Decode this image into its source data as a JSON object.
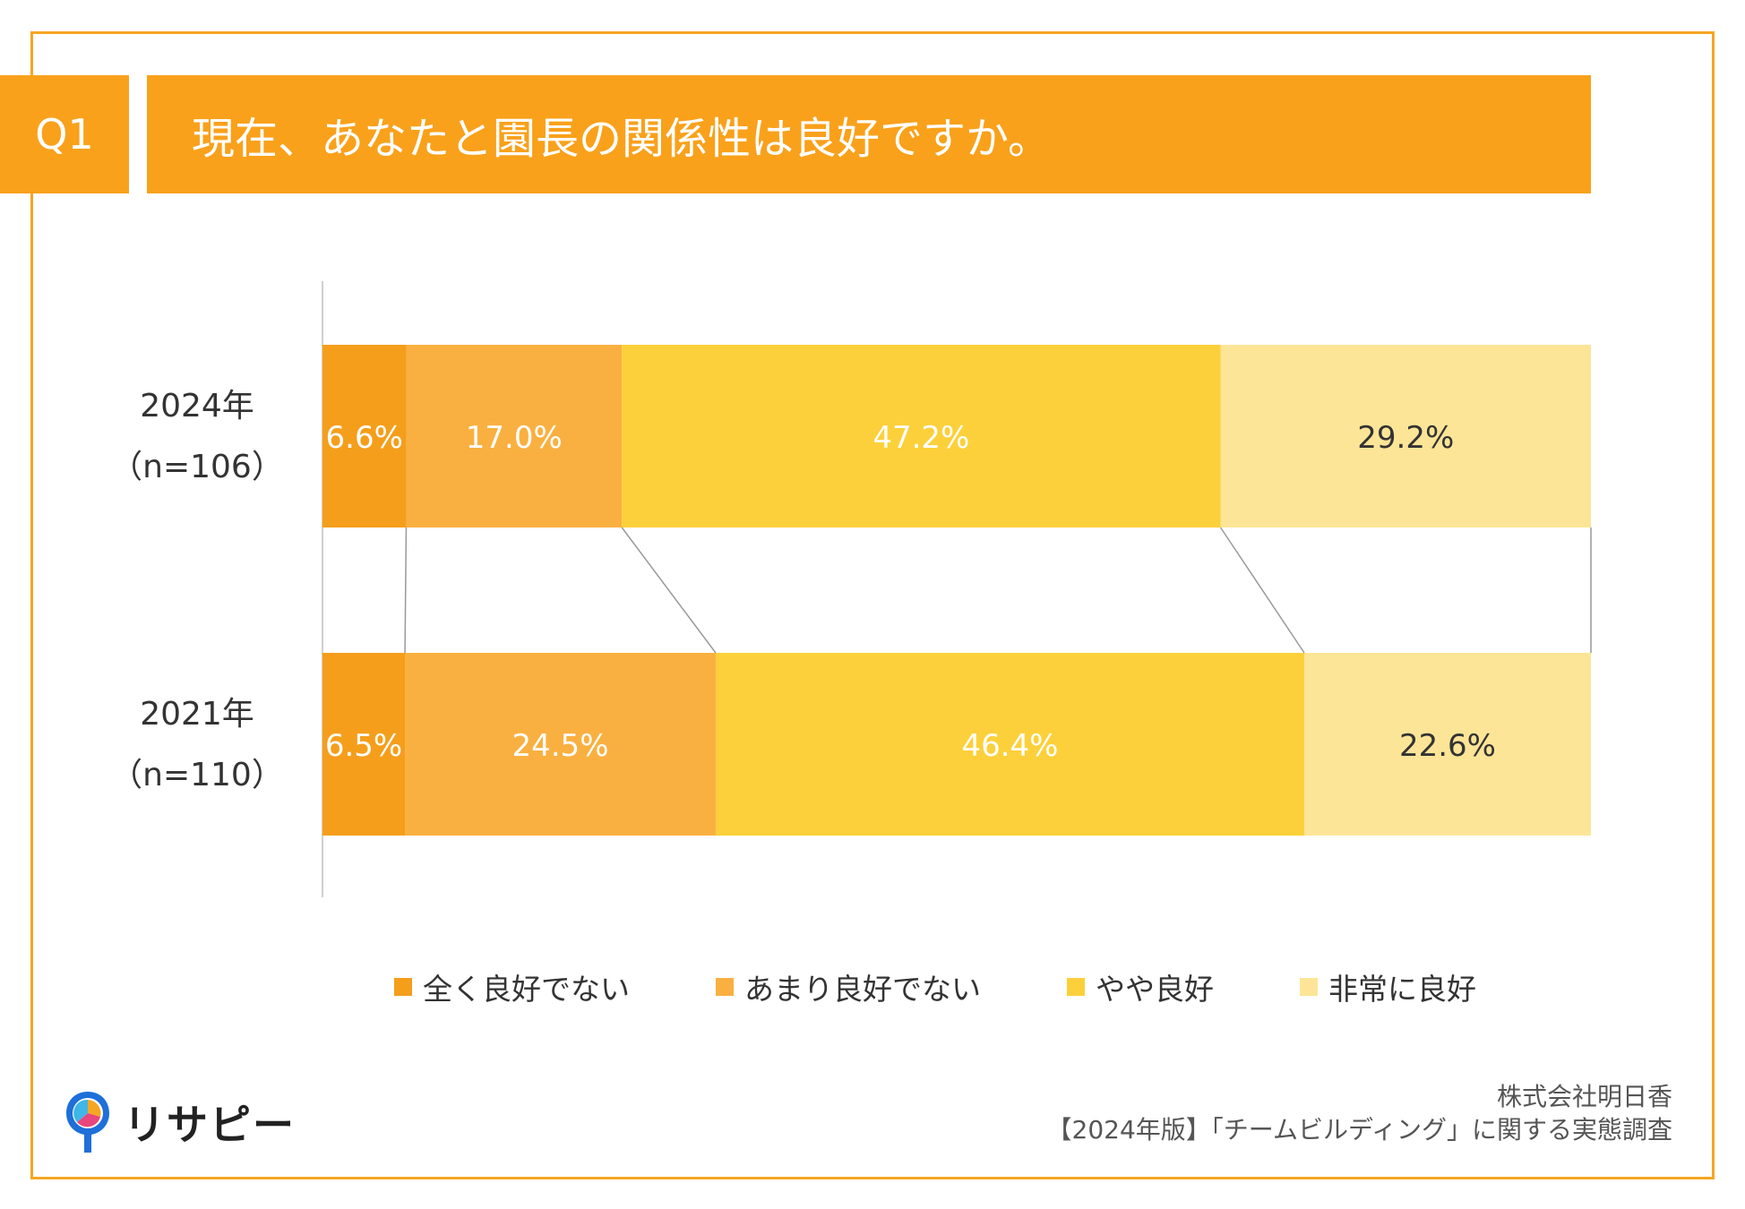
{
  "header": {
    "q_label": "Q1",
    "question": "現在、あなたと園長の関係性は良好ですか。"
  },
  "colors": {
    "accent": "#F5A623",
    "header_bg": "#F9A11B",
    "series": [
      "#F59E1B",
      "#F9B040",
      "#FCD03A",
      "#FDE597"
    ],
    "label_light": "#ffffff",
    "label_dark": "#333333",
    "connector": "#999999"
  },
  "chart_data": {
    "type": "bar",
    "orientation": "horizontal",
    "stacked": true,
    "normalized_to": 100,
    "title": "現在、あなたと園長の関係性は良好ですか。",
    "categories": [
      {
        "year": "2024年",
        "n": "（n=106）"
      },
      {
        "year": "2021年",
        "n": "（n=110）"
      }
    ],
    "series": [
      {
        "name": "全く良好でない",
        "values": [
          6.6,
          6.5
        ],
        "labels": [
          "6.6%",
          "6.5%"
        ],
        "label_color": "light"
      },
      {
        "name": "あまり良好でない",
        "values": [
          17.0,
          24.5
        ],
        "labels": [
          "17.0%",
          "24.5%"
        ],
        "label_color": "light"
      },
      {
        "name": "やや良好",
        "values": [
          47.2,
          46.4
        ],
        "labels": [
          "47.2%",
          "46.4%"
        ],
        "label_color": "light"
      },
      {
        "name": "非常に良好",
        "values": [
          29.2,
          22.6
        ],
        "labels": [
          "29.2%",
          "22.6%"
        ],
        "label_color": "dark"
      }
    ],
    "legend_position": "bottom",
    "series_lines": true
  },
  "footer": {
    "logo_text": "リサピー",
    "company": "株式会社明日香",
    "survey_title": "【2024年版】「チームビルディング」に関する実態調査"
  }
}
